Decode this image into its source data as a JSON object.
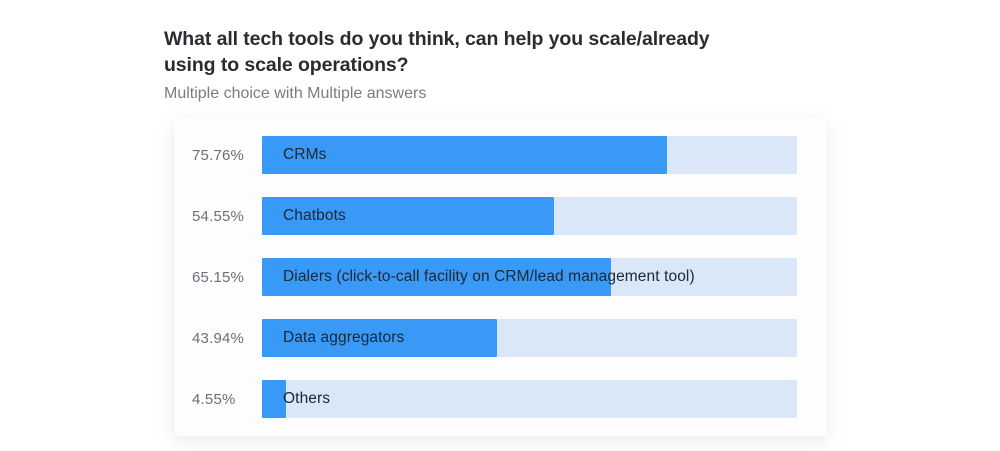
{
  "header": {
    "title": "What all tech tools do you think, can help you scale/already using to scale operations?",
    "title_line1": "What all tech tools do you think, can help you scale/already",
    "title_line2": "using to scale operations?",
    "subtitle": "Multiple choice with Multiple answers"
  },
  "chart_data": {
    "type": "bar",
    "orientation": "horizontal",
    "title": "What all tech tools do you think, can help you scale/already using to scale operations?",
    "subtitle": "Multiple choice with Multiple answers",
    "categories": [
      "CRMs",
      "Chatbots",
      "Dialers (click-to-call facility on CRM/lead management tool)",
      "Data aggregators",
      "Others"
    ],
    "values": [
      75.76,
      54.55,
      65.15,
      43.94,
      4.55
    ],
    "value_labels": [
      "75.76%",
      "54.55%",
      "65.15%",
      "43.94%",
      "4.55%"
    ],
    "xlim": [
      0,
      100
    ],
    "grid": false,
    "legend": false,
    "colors": {
      "bar_fill": "#3899f6",
      "bar_track": "#dae7f9",
      "value_label_text": "#6c6f76",
      "category_label_text": "#212832",
      "title_text": "#2b2c31",
      "subtitle_text": "#7b7c83",
      "card_background": "#fdfdfe",
      "page_background": "#ffffff"
    }
  }
}
